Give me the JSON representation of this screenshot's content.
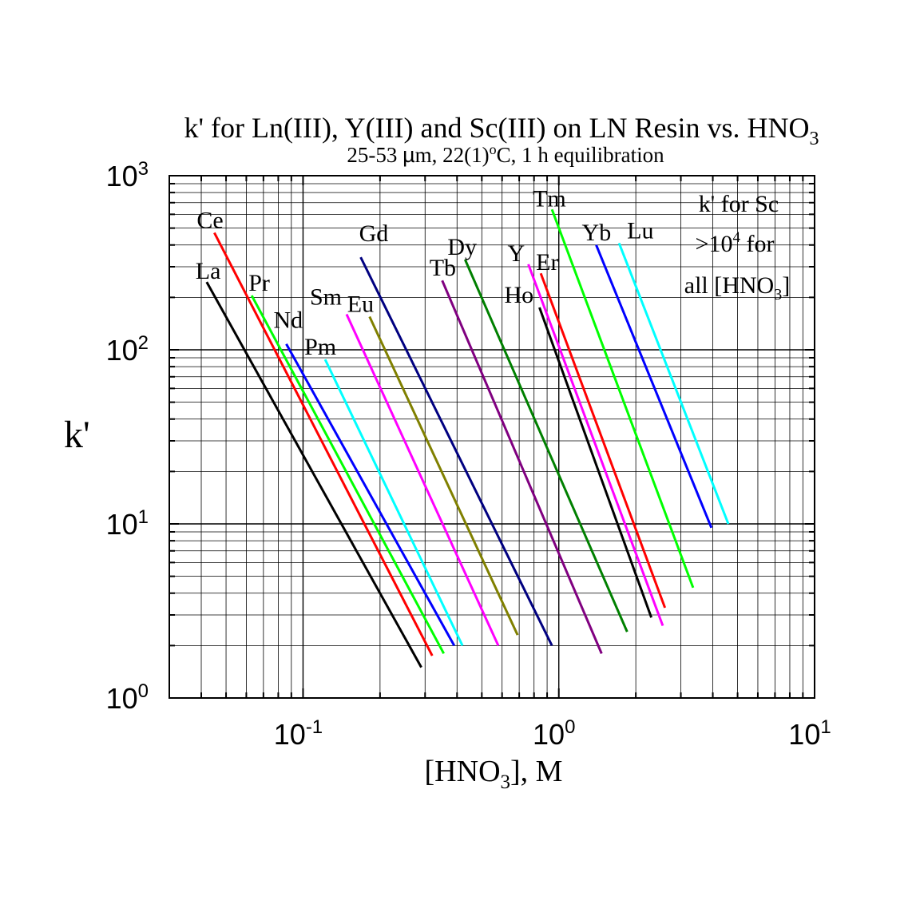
{
  "chart_data": {
    "type": "line",
    "title": "k' for Ln(III), Y(III) and Sc(III) on LN Resin vs. HNO3",
    "title_main": "k' for Ln(III), Y(III) and Sc(III) on LN Resin vs. HNO",
    "title_sub": "3",
    "subtitle": "25-53 µm, 22(1)°C, 1 h equilibration",
    "subtitle_parts": {
      "a": "25-53 ",
      "mu": "µ",
      "b": "m, 22(1)",
      "deg": "o",
      "c": "C, 1 h equilibration"
    },
    "ylabel": "k'",
    "xlabel": "[HNO3], M",
    "xlabel_parts": {
      "a": "[HNO",
      "sub": "3",
      "b": "], M"
    },
    "xscale": "log",
    "yscale": "log",
    "xlim": [
      0.03,
      10
    ],
    "ylim": [
      1,
      1000
    ],
    "grid": true,
    "x_ticks": [
      {
        "value": 0.1,
        "base": "10",
        "exp": "-1"
      },
      {
        "value": 1,
        "base": "10",
        "exp": "0"
      },
      {
        "value": 10,
        "base": "10",
        "exp": "1"
      }
    ],
    "y_ticks": [
      {
        "value": 1,
        "base": "10",
        "exp": "0"
      },
      {
        "value": 10,
        "base": "10",
        "exp": "1"
      },
      {
        "value": 100,
        "base": "10",
        "exp": "2"
      },
      {
        "value": 1000,
        "base": "10",
        "exp": "3"
      }
    ],
    "annotation": {
      "line1": "k' for Sc",
      "line2_a": ">10",
      "line2_sup": "4",
      "line2_b": " for",
      "line3_a": "all [HNO",
      "line3_sub": "3",
      "line3_b": "]"
    },
    "series": [
      {
        "name": "La",
        "color": "#000000",
        "x": [
          0.042,
          0.29
        ],
        "y": [
          245,
          1.5
        ]
      },
      {
        "name": "Ce",
        "color": "#ff0000",
        "x": [
          0.045,
          0.32
        ],
        "y": [
          470,
          1.75
        ]
      },
      {
        "name": "Pr",
        "color": "#00ff00",
        "x": [
          0.063,
          0.355
        ],
        "y": [
          205,
          1.8
        ]
      },
      {
        "name": "Nd",
        "color": "#0000ff",
        "x": [
          0.086,
          0.39
        ],
        "y": [
          108,
          2.0
        ]
      },
      {
        "name": "Pm",
        "color": "#00ffff",
        "x": [
          0.122,
          0.42
        ],
        "y": [
          88,
          2.0
        ]
      },
      {
        "name": "Sm",
        "color": "#ff00ff",
        "x": [
          0.148,
          0.58
        ],
        "y": [
          160,
          2.0
        ]
      },
      {
        "name": "Eu",
        "color": "#808000",
        "x": [
          0.182,
          0.69
        ],
        "y": [
          155,
          2.3
        ]
      },
      {
        "name": "Gd",
        "color": "#000080",
        "x": [
          0.168,
          0.94
        ],
        "y": [
          340,
          2.0
        ]
      },
      {
        "name": "Tb",
        "color": "#800080",
        "x": [
          0.35,
          1.47
        ],
        "y": [
          250,
          1.8
        ]
      },
      {
        "name": "Dy",
        "color": "#008000",
        "x": [
          0.43,
          1.85
        ],
        "y": [
          330,
          2.4
        ]
      },
      {
        "name": "Ho",
        "color": "#000000",
        "x": [
          0.84,
          2.3
        ],
        "y": [
          175,
          2.9
        ]
      },
      {
        "name": "Y",
        "color": "#ff00ff",
        "x": [
          0.76,
          2.55
        ],
        "y": [
          310,
          2.6
        ]
      },
      {
        "name": "Er",
        "color": "#ff0000",
        "x": [
          0.85,
          2.6
        ],
        "y": [
          275,
          3.3
        ]
      },
      {
        "name": "Tm",
        "color": "#00ff00",
        "x": [
          0.94,
          3.35
        ],
        "y": [
          640,
          4.3
        ]
      },
      {
        "name": "Yb",
        "color": "#0000ff",
        "x": [
          1.4,
          3.95
        ],
        "y": [
          400,
          9.5
        ]
      },
      {
        "name": "Lu",
        "color": "#00ffff",
        "x": [
          1.72,
          4.6
        ],
        "y": [
          410,
          10
        ]
      }
    ]
  }
}
